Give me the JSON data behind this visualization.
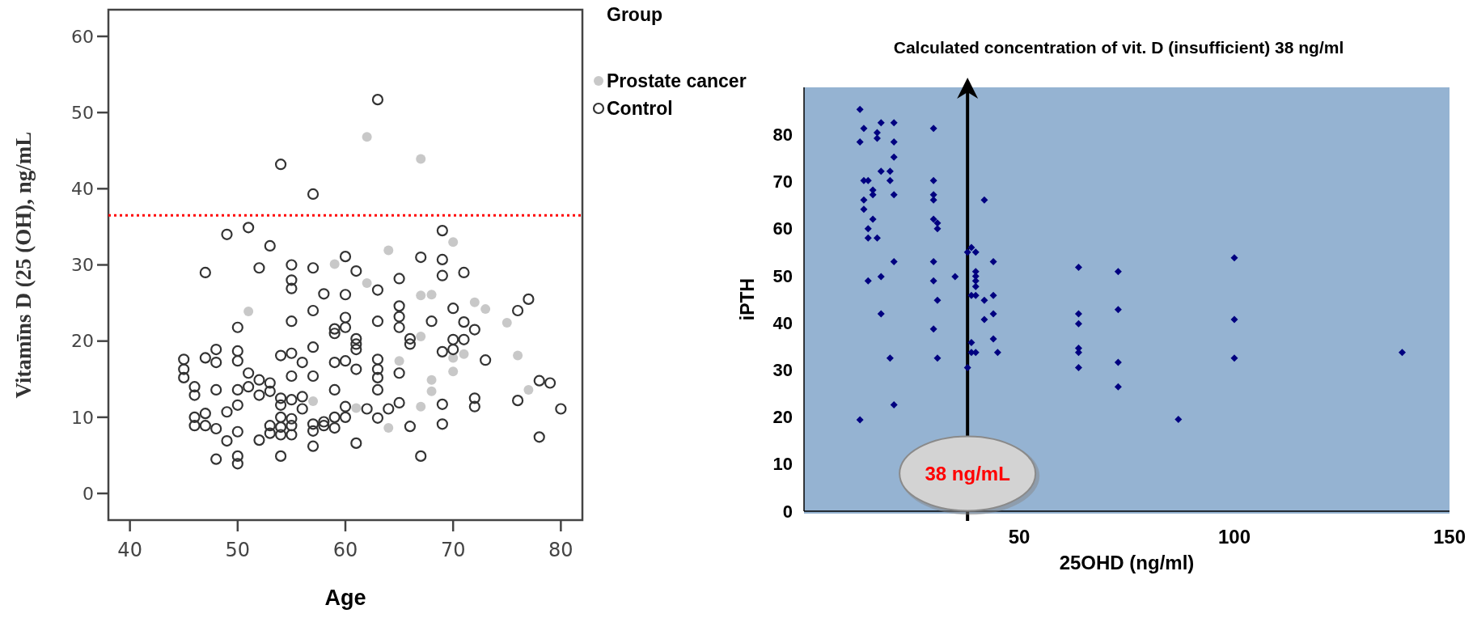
{
  "chart_data": [
    {
      "type": "scatter",
      "xlabel": "Age",
      "ylabel": "Vitamīns D (25 (OH), ng/mL",
      "legend_title": "Group",
      "legend": "top right",
      "marker": "circle",
      "xlim": [
        38,
        82
      ],
      "xticks": [
        40,
        50,
        60,
        70,
        80
      ],
      "ylim": [
        -3.5,
        63.5
      ],
      "yticks": [
        0,
        10,
        20,
        30,
        40,
        50,
        60
      ],
      "ref_lines": [
        {
          "axis": "y",
          "value": 36.5,
          "color": "#ff0000",
          "line_style": "dotted"
        }
      ],
      "series": [
        {
          "name": "Prostate cancer",
          "color": "#c8c8c8",
          "x": [
            62,
            67,
            59,
            64,
            70,
            62,
            67,
            68,
            72,
            73,
            51,
            75,
            67,
            71,
            70,
            76,
            65,
            70,
            68,
            68,
            77,
            67,
            64,
            57,
            61
          ],
          "values": [
            46.8,
            43.9,
            30.1,
            31.9,
            33.0,
            27.6,
            26.0,
            26.1,
            25.1,
            24.2,
            23.9,
            22.4,
            20.6,
            18.3,
            17.8,
            18.1,
            17.4,
            16.0,
            14.9,
            13.4,
            13.6,
            11.4,
            8.6,
            12.1,
            11.2
          ]
        },
        {
          "name": "Control",
          "color": "#333333",
          "x": [
            63,
            54,
            57,
            49,
            51,
            53,
            69,
            47,
            52,
            55,
            57,
            60,
            61,
            55,
            55,
            58,
            60,
            63,
            65,
            67,
            69,
            69,
            71,
            57,
            65,
            65,
            70,
            76,
            77,
            55,
            60,
            63,
            68,
            71,
            60,
            65,
            72,
            50,
            59,
            59,
            61,
            61,
            61,
            66,
            66,
            70,
            70,
            71,
            69,
            73,
            45,
            45,
            45,
            46,
            46,
            46,
            46,
            47,
            47,
            47,
            48,
            48,
            48,
            48,
            48,
            49,
            49,
            50,
            50,
            50,
            50,
            50,
            50,
            50,
            51,
            51,
            52,
            52,
            52,
            53,
            53,
            53,
            53,
            54,
            54,
            54,
            54,
            54,
            54,
            54,
            55,
            55,
            55,
            55,
            55,
            55,
            56,
            56,
            56,
            57,
            57,
            57,
            57,
            57,
            58,
            58,
            59,
            59,
            59,
            59,
            60,
            60,
            60,
            61,
            61,
            62,
            63,
            63,
            63,
            63,
            63,
            64,
            65,
            65,
            66,
            67,
            69,
            69,
            72,
            72,
            76,
            78,
            78,
            79,
            80
          ],
          "values": [
            51.7,
            43.2,
            39.3,
            34.0,
            34.9,
            32.5,
            34.5,
            29.0,
            29.6,
            30.0,
            29.6,
            31.1,
            29.2,
            28.0,
            26.9,
            26.2,
            26.1,
            26.7,
            28.2,
            31.0,
            30.7,
            28.6,
            29.0,
            24.0,
            24.6,
            23.2,
            24.3,
            24.0,
            25.5,
            22.6,
            23.1,
            22.6,
            22.6,
            22.5,
            21.8,
            21.8,
            21.5,
            21.8,
            21.6,
            21.0,
            20.3,
            19.6,
            18.9,
            20.3,
            19.6,
            20.2,
            18.9,
            20.2,
            18.6,
            17.5,
            17.6,
            16.3,
            15.2,
            14.0,
            12.9,
            10.0,
            8.9,
            17.8,
            10.5,
            8.9,
            18.9,
            17.2,
            13.6,
            8.5,
            4.5,
            10.7,
            6.9,
            18.7,
            17.4,
            13.6,
            11.6,
            8.1,
            4.9,
            3.9,
            15.8,
            14.0,
            14.9,
            12.9,
            7.0,
            14.5,
            13.4,
            8.9,
            7.9,
            18.1,
            12.5,
            11.6,
            10.0,
            8.7,
            7.7,
            4.9,
            18.4,
            15.4,
            12.3,
            9.8,
            8.9,
            7.7,
            17.2,
            12.7,
            11.1,
            19.2,
            15.4,
            9.1,
            8.2,
            6.2,
            9.4,
            8.9,
            17.2,
            13.6,
            10.0,
            8.6,
            17.4,
            11.4,
            10.0,
            16.3,
            6.6,
            11.1,
            17.6,
            16.3,
            15.2,
            13.6,
            9.9,
            11.1,
            15.8,
            11.9,
            8.8,
            4.9,
            11.7,
            9.1,
            12.5,
            11.4,
            12.2,
            14.8,
            7.4,
            14.5,
            11.1
          ]
        }
      ]
    },
    {
      "type": "scatter",
      "xlabel": "25OHD (ng/ml)",
      "ylabel": "iPTH",
      "marker": "diamond",
      "xlim": [
        0,
        150
      ],
      "xticks": [
        50,
        100,
        150
      ],
      "ylim": [
        0,
        90
      ],
      "yticks": [
        0,
        10,
        20,
        30,
        40,
        50,
        60,
        70,
        80
      ],
      "ref_lines": [
        {
          "axis": "x",
          "value": 38,
          "label": "Calculated concentration of vit. D (insufficient) 38 ng/ml",
          "color": "#000000"
        }
      ],
      "annotations": [
        {
          "text": "38 ng/mL",
          "x": 38,
          "y": 8
        }
      ],
      "series": [
        {
          "color": "#000080",
          "x": [
            13.0,
            13.0,
            13.9,
            17.0,
            17.0,
            17.9,
            20.9,
            20.9,
            20.9,
            17.9,
            20.0,
            13.9,
            14.9,
            20.0,
            16.0,
            16.0,
            20.9,
            13.9,
            13.9,
            16.0,
            14.9,
            14.9,
            17.0,
            20.9,
            14.9,
            17.9,
            17.9,
            20.0,
            20.9,
            13.0,
            30.1,
            30.1,
            30.1,
            30.1,
            30.1,
            31.0,
            31.0,
            30.1,
            30.1,
            31.0,
            30.1,
            31.0,
            35.1,
            41.9,
            38.0,
            38.9,
            39.9,
            44.0,
            39.9,
            39.9,
            39.9,
            39.9,
            38.9,
            39.9,
            41.9,
            44.0,
            44.0,
            41.9,
            44.0,
            38.9,
            38.9,
            39.9,
            45.0,
            38.0,
            63.8,
            63.8,
            63.8,
            63.8,
            63.8,
            63.8,
            73.0,
            73.0,
            73.0,
            73.0,
            100.0,
            100.0,
            100.0,
            87.0,
            139.0
          ],
          "values": [
            85.3,
            78.4,
            81.3,
            80.4,
            79.2,
            82.5,
            82.5,
            78.4,
            75.2,
            72.2,
            72.2,
            70.2,
            70.2,
            70.2,
            68.2,
            67.2,
            67.2,
            66.1,
            64.1,
            62.0,
            60.0,
            58.0,
            58.0,
            53.0,
            48.9,
            49.8,
            41.9,
            32.5,
            22.6,
            19.4,
            81.3,
            70.2,
            67.2,
            66.1,
            62.0,
            61.2,
            60.0,
            53.0,
            48.9,
            44.8,
            38.7,
            32.5,
            49.8,
            66.1,
            55.0,
            56.0,
            55.0,
            53.0,
            50.9,
            49.9,
            48.9,
            47.7,
            45.8,
            45.8,
            44.8,
            45.8,
            41.9,
            40.7,
            36.6,
            35.8,
            33.7,
            33.7,
            33.7,
            30.5,
            51.8,
            41.9,
            39.8,
            34.6,
            33.7,
            30.5,
            50.9,
            42.8,
            31.6,
            26.4,
            53.8,
            40.7,
            32.5,
            19.5,
            33.7
          ]
        }
      ]
    }
  ]
}
